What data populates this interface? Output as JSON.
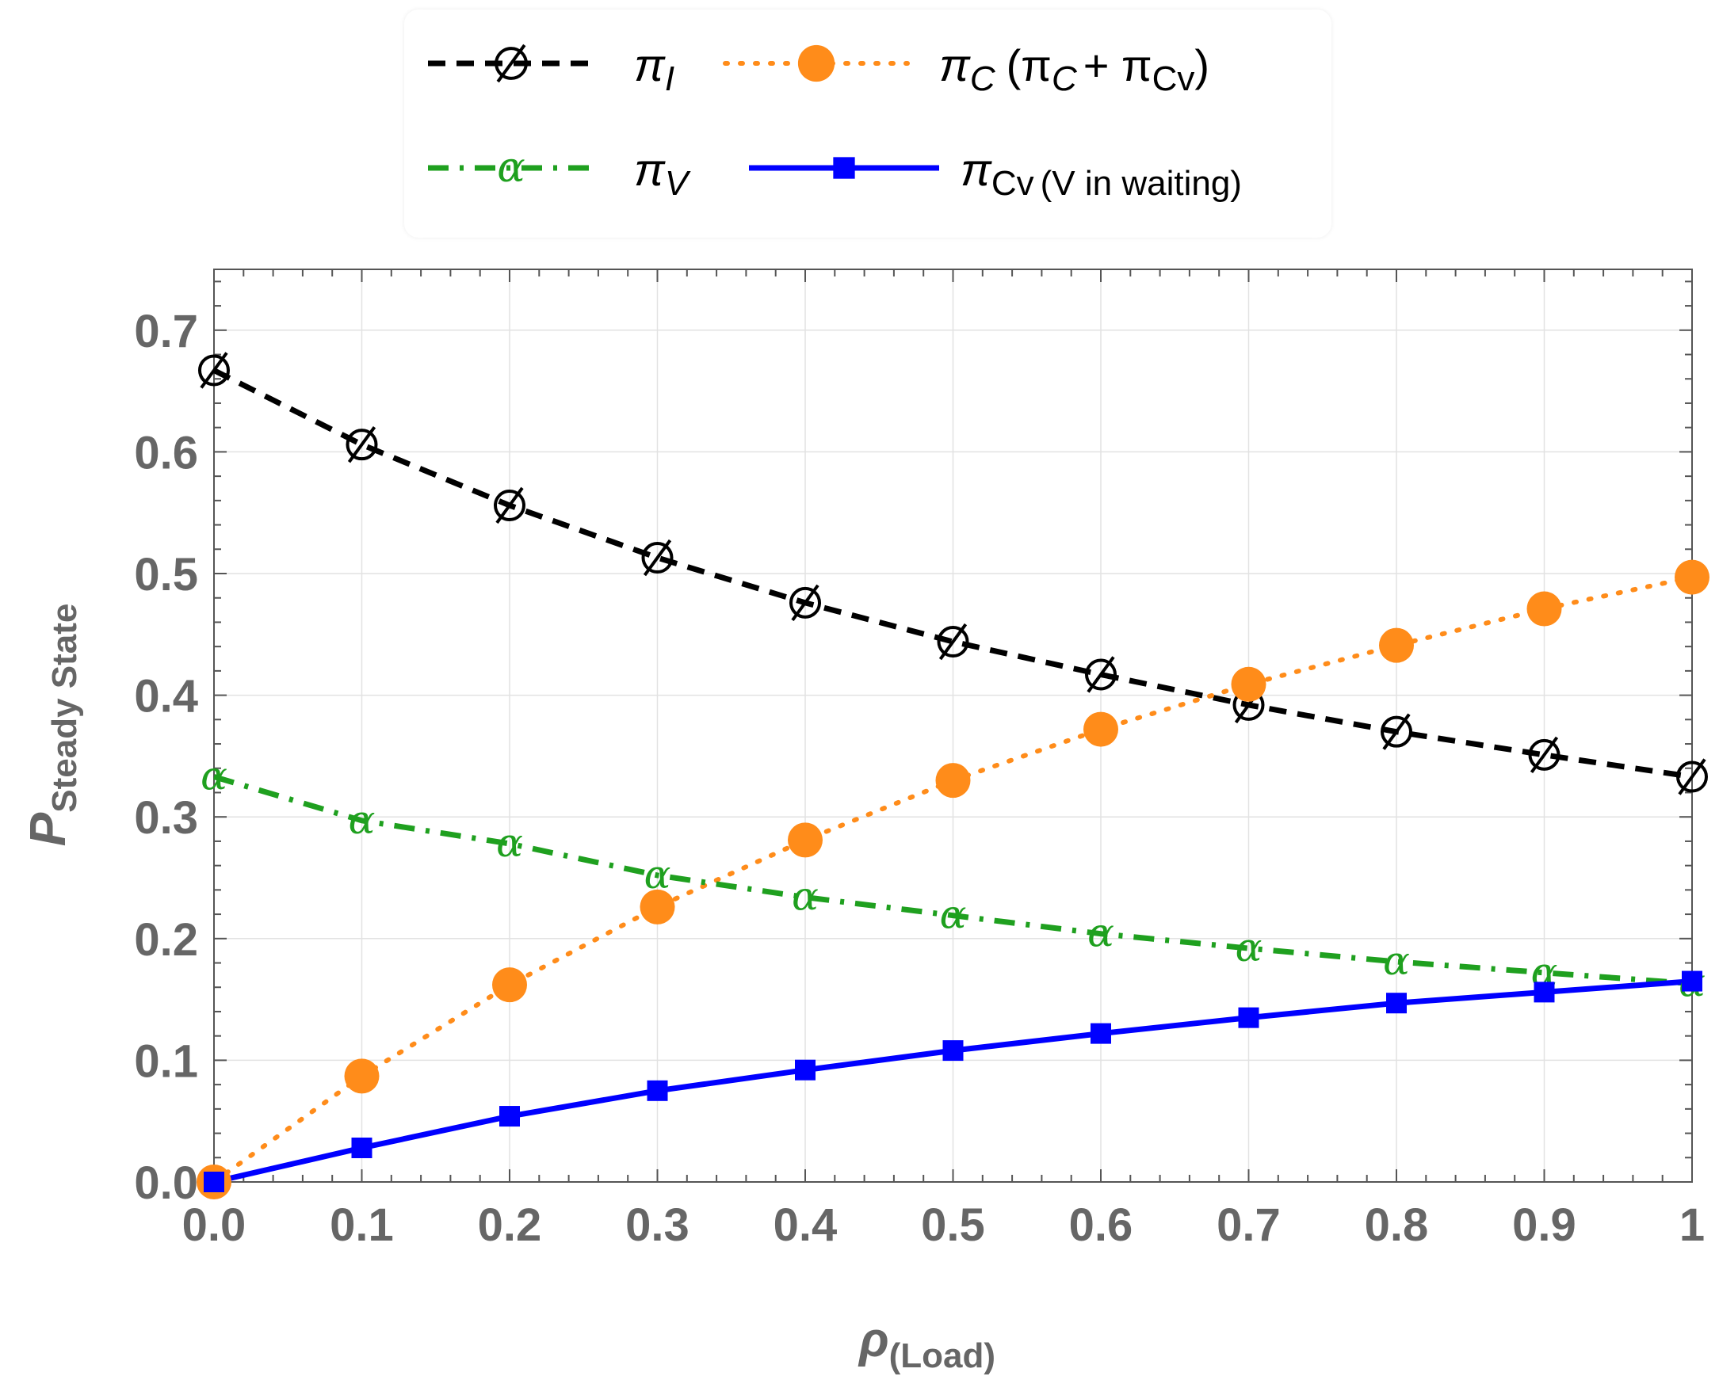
{
  "chart_data": {
    "type": "line",
    "title": "",
    "xlabel": {
      "main": "ρ",
      "sub": "(Load)"
    },
    "ylabel": {
      "main": "P",
      "sub": "Steady State"
    },
    "xlim": [
      0,
      1
    ],
    "ylim": [
      0,
      0.75
    ],
    "x_ticks": [
      0,
      0.1,
      0.2,
      0.3,
      0.4,
      0.5,
      0.6,
      0.7,
      0.8,
      0.9,
      1
    ],
    "x_tick_labels": [
      "0.0",
      "0.1",
      "0.2",
      "0.3",
      "0.4",
      "0.5",
      "0.6",
      "0.7",
      "0.8",
      "0.9",
      "1"
    ],
    "y_ticks": [
      0,
      0.1,
      0.2,
      0.3,
      0.4,
      0.5,
      0.6,
      0.7
    ],
    "y_tick_labels": [
      "0.0",
      "0.1",
      "0.2",
      "0.3",
      "0.4",
      "0.5",
      "0.6",
      "0.7"
    ],
    "grid": true,
    "legend_position": "top",
    "x": [
      0,
      0.1,
      0.2,
      0.3,
      0.4,
      0.5,
      0.6,
      0.7,
      0.8,
      0.9,
      1
    ],
    "series": [
      {
        "id": "pi_I",
        "name": "π",
        "name_sub": "I",
        "marker_symbol": "∅",
        "color": "#000000",
        "style": "dashed",
        "values": [
          0.667,
          0.606,
          0.556,
          0.513,
          0.476,
          0.444,
          0.417,
          0.392,
          0.37,
          0.351,
          0.333
        ]
      },
      {
        "id": "pi_C",
        "name": "π",
        "name_sub": "C",
        "name_rest": "(π",
        "name_rest_sub": "C",
        "name_rest_plus": "+ π",
        "name_rest_sub2": "Cv",
        "name_rest_close": ")",
        "marker_symbol": "●",
        "color": "#ff8c1a",
        "style": "dotted",
        "values": [
          0.0,
          0.087,
          0.162,
          0.226,
          0.281,
          0.33,
          0.372,
          0.409,
          0.441,
          0.471,
          0.497
        ]
      },
      {
        "id": "pi_V",
        "name": "π",
        "name_sub": "V",
        "marker_symbol": "α",
        "color": "#1fa01f",
        "style": "dashdot",
        "values": [
          0.333,
          0.297,
          0.278,
          0.252,
          0.234,
          0.219,
          0.204,
          0.192,
          0.181,
          0.172,
          0.163
        ]
      },
      {
        "id": "pi_Cv",
        "name": "π",
        "name_sub": "Cv",
        "name_sub_rest": "(V in waiting)",
        "marker_symbol": "■",
        "color": "#0000ff",
        "style": "solid",
        "values": [
          0.0,
          0.028,
          0.054,
          0.075,
          0.092,
          0.108,
          0.122,
          0.135,
          0.147,
          0.156,
          0.165
        ]
      }
    ]
  }
}
